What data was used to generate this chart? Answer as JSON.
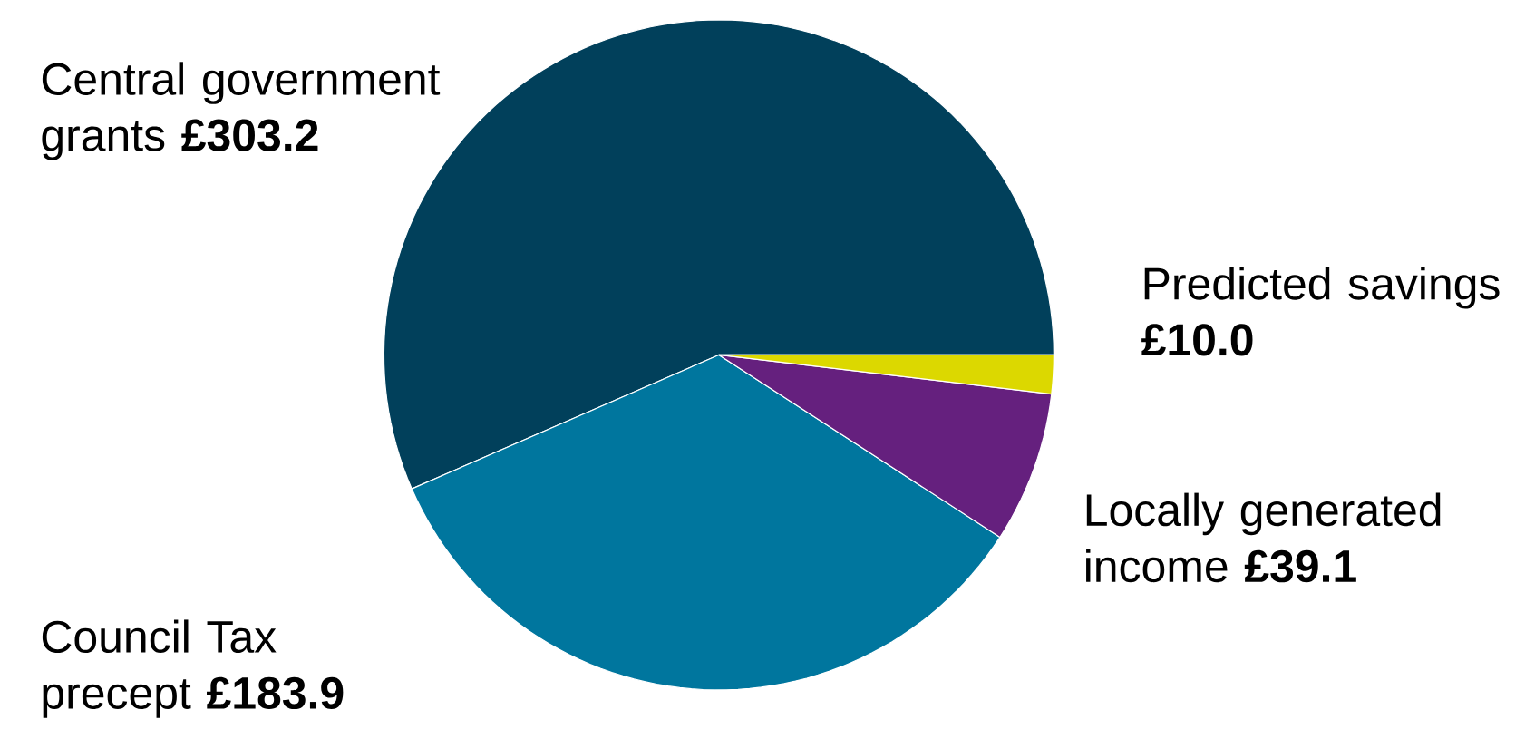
{
  "chart_data": {
    "type": "pie",
    "categories": [
      "Central government grants **£303.2**",
      "Council Tax precept **£183.9**",
      "Locally generated income **£39.1**",
      "Predicted savings **£10.0**"
    ],
    "values": [
      303.2,
      183.9,
      39.1,
      10.0
    ],
    "colors": [
      "#01405b",
      "#00769e",
      "#65207e",
      "#dcd800"
    ]
  }
}
